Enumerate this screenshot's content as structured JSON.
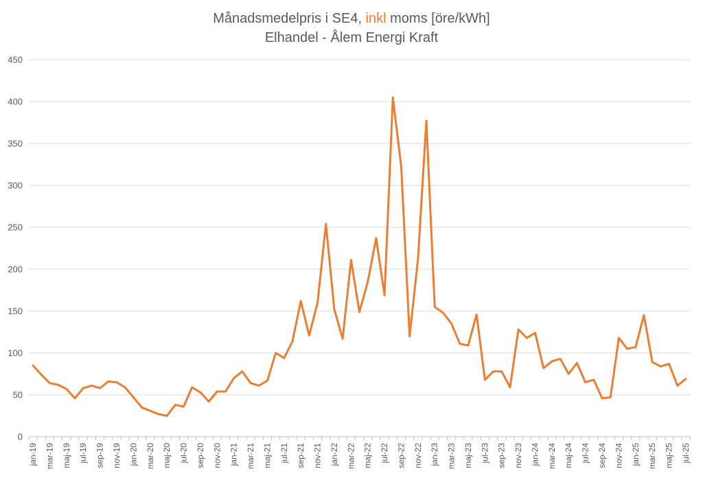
{
  "colors": {
    "series": "#ED7D31",
    "text": "#595959",
    "grid": "#D9D9D9",
    "axis": "#BFBFBF"
  },
  "chart_data": {
    "type": "line",
    "title": {
      "prefix": "Månadsmedelpris i SE4, ",
      "highlight": "inkl",
      "suffix": " moms [öre/kWh]"
    },
    "subtitle": "Elhandel - Ålem Energi Kraft",
    "xlabel": "",
    "ylabel": "",
    "ylim": [
      0,
      450
    ],
    "yticks": [
      "0",
      "50",
      "100",
      "150",
      "200",
      "250",
      "300",
      "350",
      "400",
      "450"
    ],
    "grid": true,
    "legend": "none",
    "categories": [
      "jan-19",
      "feb-19",
      "mar-19",
      "apr-19",
      "maj-19",
      "jun-19",
      "jul-19",
      "aug-19",
      "sep-19",
      "okt-19",
      "nov-19",
      "dec-19",
      "jan-20",
      "feb-20",
      "mar-20",
      "apr-20",
      "maj-20",
      "jun-20",
      "jul-20",
      "aug-20",
      "sep-20",
      "okt-20",
      "nov-20",
      "dec-20",
      "jan-21",
      "feb-21",
      "mar-21",
      "apr-21",
      "maj-21",
      "jun-21",
      "jul-21",
      "aug-21",
      "sep-21",
      "okt-21",
      "nov-21",
      "dec-21",
      "jan-22",
      "feb-22",
      "mar-22",
      "apr-22",
      "maj-22",
      "jun-22",
      "jul-22",
      "aug-22",
      "sep-22",
      "okt-22",
      "nov-22",
      "dec-22",
      "jan-23",
      "feb-23",
      "mar-23",
      "apr-23",
      "maj-23",
      "jun-23",
      "jul-23",
      "aug-23",
      "sep-23",
      "okt-23",
      "nov-23",
      "dec-23",
      "jan-24",
      "feb-24",
      "mar-24",
      "apr-24",
      "maj-24",
      "jun-24",
      "jul-24",
      "aug-24",
      "sep-24",
      "okt-24",
      "nov-24",
      "dec-24",
      "jan-25",
      "feb-25",
      "mar-25",
      "apr-25",
      "maj-25",
      "jun-25",
      "jul-25"
    ],
    "x_tick_labels": [
      "jan-19",
      "mar-19",
      "maj-19",
      "jul-19",
      "sep-19",
      "nov-19",
      "jan-20",
      "mar-20",
      "maj-20",
      "jul-20",
      "sep-20",
      "nov-20",
      "jan-21",
      "mar-21",
      "maj-21",
      "jul-21",
      "sep-21",
      "nov-21",
      "jan-22",
      "mar-22",
      "maj-22",
      "jul-22",
      "sep-22",
      "nov-22",
      "jan-23",
      "mar-23",
      "maj-23",
      "jul-23",
      "sep-23",
      "nov-23",
      "jan-24",
      "mar-24",
      "maj-24",
      "jul-24",
      "sep-24",
      "nov-24",
      "jan-25",
      "mar-25",
      "maj-25",
      "jul-25"
    ],
    "series": [
      {
        "values": [
          85,
          74,
          64,
          62,
          57,
          46,
          58,
          61,
          58,
          66,
          65,
          59,
          47,
          35,
          31,
          27,
          25,
          38,
          36,
          59,
          53,
          42,
          54,
          54,
          70,
          78,
          64,
          61,
          67,
          100,
          94,
          114,
          162,
          121,
          160,
          254,
          152,
          117,
          211,
          149,
          185,
          237,
          169,
          405,
          322,
          120,
          212,
          377,
          155,
          148,
          135,
          111,
          109,
          146,
          68,
          78,
          78,
          59,
          128,
          118,
          124,
          82,
          90,
          93,
          75,
          88,
          65,
          68,
          46,
          47,
          118,
          105,
          107,
          145,
          89,
          84,
          87,
          61,
          69
        ]
      }
    ]
  }
}
